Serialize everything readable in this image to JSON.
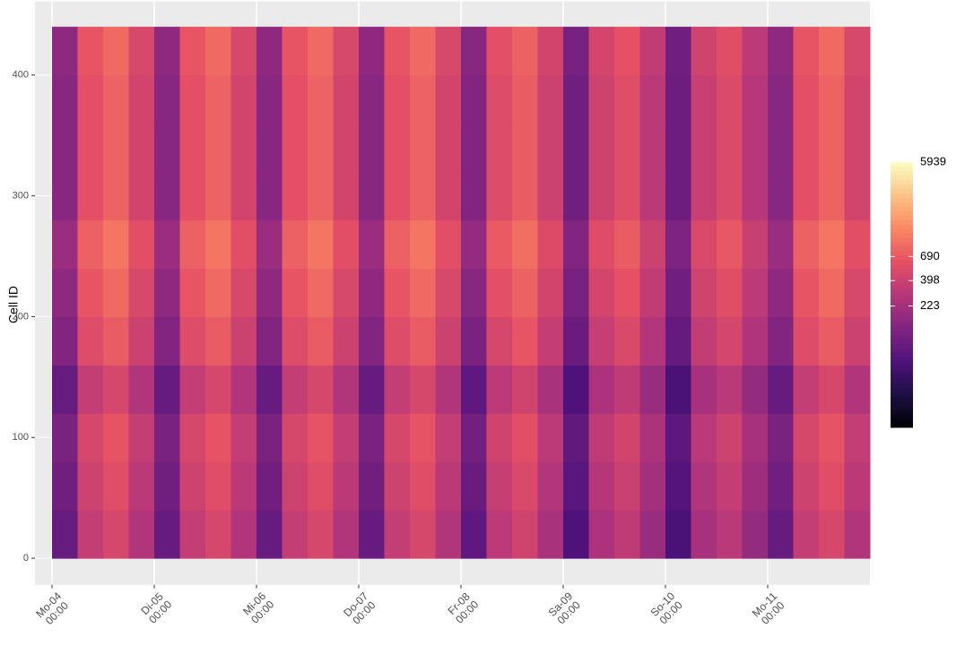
{
  "chart_data": {
    "type": "heatmap",
    "ylabel": "Cell ID",
    "xlim": [
      -4,
      192
    ],
    "ylim": [
      -22,
      461
    ],
    "xticks": [
      {
        "value": 0,
        "label": "Mo-04\n00:00"
      },
      {
        "value": 24,
        "label": "Di-05\n00:00"
      },
      {
        "value": 48,
        "label": "Mi-06\n00:00"
      },
      {
        "value": 72,
        "label": "Do-07\n00:00"
      },
      {
        "value": 96,
        "label": "Fr-08\n00:00"
      },
      {
        "value": 120,
        "label": "Sa-09\n00:00"
      },
      {
        "value": 144,
        "label": "So-10\n00:00"
      },
      {
        "value": 168,
        "label": "Mo-11\n00:00"
      }
    ],
    "yticks": [
      0,
      100,
      200,
      300,
      400
    ],
    "x_bins": [
      0,
      6,
      12,
      18,
      24,
      30,
      36,
      42,
      48,
      54,
      60,
      66,
      72,
      78,
      84,
      90,
      96,
      102,
      108,
      114,
      120,
      126,
      132,
      138,
      144,
      150,
      156,
      162,
      168,
      174,
      180,
      186,
      192
    ],
    "y_bins": [
      0,
      40,
      80,
      120,
      160,
      200,
      240,
      280,
      320,
      360,
      400,
      440
    ],
    "colormap": "magma",
    "color_scale": "log",
    "colorlim": [
      14,
      5939
    ],
    "colorticks": [
      223,
      398,
      690,
      5939
    ],
    "values": [
      [
        90,
        360,
        480,
        270,
        90,
        360,
        480,
        270,
        90,
        360,
        480,
        270,
        90,
        360,
        480,
        270,
        81,
        324,
        432,
        243,
        63,
        252,
        336,
        189,
        59,
        234,
        312,
        176,
        90,
        360,
        480,
        270
      ],
      [
        105,
        420,
        560,
        315,
        105,
        420,
        560,
        315,
        105,
        420,
        560,
        315,
        105,
        420,
        560,
        315,
        95,
        378,
        504,
        284,
        74,
        294,
        392,
        221,
        69,
        273,
        364,
        205,
        105,
        420,
        560,
        315
      ],
      [
        120,
        480,
        640,
        360,
        120,
        480,
        640,
        360,
        120,
        480,
        640,
        360,
        120,
        480,
        640,
        360,
        108,
        432,
        576,
        324,
        84,
        336,
        448,
        252,
        78,
        312,
        416,
        234,
        120,
        480,
        640,
        360
      ],
      [
        90,
        360,
        480,
        270,
        90,
        360,
        480,
        270,
        90,
        360,
        480,
        270,
        90,
        360,
        480,
        270,
        81,
        324,
        432,
        243,
        63,
        252,
        336,
        189,
        59,
        234,
        312,
        176,
        90,
        360,
        480,
        270
      ],
      [
        135,
        540,
        720,
        405,
        135,
        540,
        720,
        405,
        135,
        540,
        720,
        405,
        135,
        540,
        720,
        405,
        122,
        486,
        648,
        365,
        95,
        378,
        504,
        284,
        88,
        351,
        468,
        264,
        135,
        540,
        720,
        405
      ],
      [
        165,
        660,
        880,
        495,
        165,
        660,
        880,
        495,
        165,
        660,
        880,
        495,
        165,
        660,
        880,
        495,
        149,
        594,
        792,
        446,
        116,
        462,
        616,
        347,
        107,
        429,
        572,
        322,
        165,
        660,
        880,
        495
      ],
      [
        195,
        780,
        1040,
        585,
        195,
        780,
        1040,
        585,
        195,
        780,
        1040,
        585,
        195,
        780,
        1040,
        585,
        176,
        702,
        936,
        527,
        137,
        546,
        728,
        410,
        127,
        507,
        676,
        381,
        195,
        780,
        1040,
        585
      ],
      [
        150,
        600,
        800,
        450,
        150,
        600,
        800,
        450,
        150,
        600,
        800,
        450,
        150,
        600,
        800,
        450,
        135,
        540,
        720,
        405,
        105,
        420,
        560,
        315,
        98,
        390,
        520,
        293,
        150,
        600,
        800,
        450
      ],
      [
        150,
        600,
        800,
        450,
        150,
        600,
        800,
        450,
        150,
        600,
        800,
        450,
        150,
        600,
        800,
        450,
        135,
        540,
        720,
        405,
        105,
        420,
        560,
        315,
        98,
        390,
        520,
        293,
        150,
        600,
        800,
        450
      ],
      [
        150,
        600,
        800,
        450,
        150,
        600,
        800,
        450,
        150,
        600,
        800,
        450,
        150,
        600,
        800,
        450,
        135,
        540,
        720,
        405,
        105,
        420,
        560,
        315,
        98,
        390,
        520,
        293,
        150,
        600,
        800,
        450
      ],
      [
        165,
        660,
        880,
        495,
        165,
        660,
        880,
        495,
        165,
        660,
        880,
        495,
        165,
        660,
        880,
        495,
        149,
        594,
        792,
        446,
        116,
        462,
        616,
        347,
        107,
        429,
        572,
        322,
        165,
        660,
        880,
        495
      ]
    ]
  }
}
